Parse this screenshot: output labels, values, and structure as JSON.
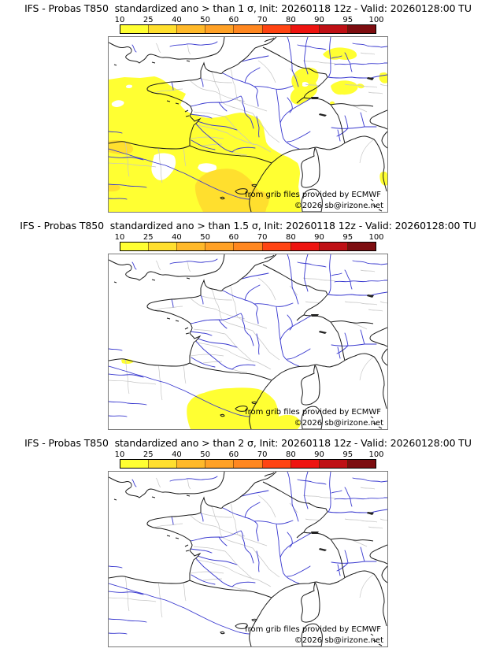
{
  "page": {
    "background": "#ffffff"
  },
  "panels": [
    {
      "title": "IFS - Probas T850  standardized ano > than 1 σ, Init: 20260118 12z - Valid: 20260128:00 TU",
      "threshold_sigma": "1"
    },
    {
      "title": "IFS - Probas T850  standardized ano > than 1.5 σ, Init: 20260118 12z - Valid: 20260128:00 TU",
      "threshold_sigma": "1.5"
    },
    {
      "title": "IFS - Probas T850  standardized ano > than 2 σ, Init: 20260118 12z - Valid: 20260128:00 TU",
      "threshold_sigma": "2"
    }
  ],
  "colorbar": {
    "tick_labels": [
      "10",
      "25",
      "40",
      "50",
      "60",
      "70",
      "80",
      "90",
      "95",
      "100"
    ],
    "segment_colors": [
      "#ffff32",
      "#ffdf2e",
      "#ffb92a",
      "#ffa126",
      "#ff8720",
      "#ff4413",
      "#ee1410",
      "#bf1015",
      "#7d0d10"
    ]
  },
  "map": {
    "attribution_line1": "from grib files provided by ECMWF",
    "attribution_line2": "©2026 sb@irizone.net",
    "coast_color": "#1a1a1a",
    "admin_boundary_color": "#c5c5c5",
    "river_color": "#3838cf",
    "lake_color": "#222222",
    "frame_color": "#7a7a7a",
    "overlay_colors": {
      "p10_25": "#ffff32",
      "p25_40": "#ffdf2e"
    }
  }
}
